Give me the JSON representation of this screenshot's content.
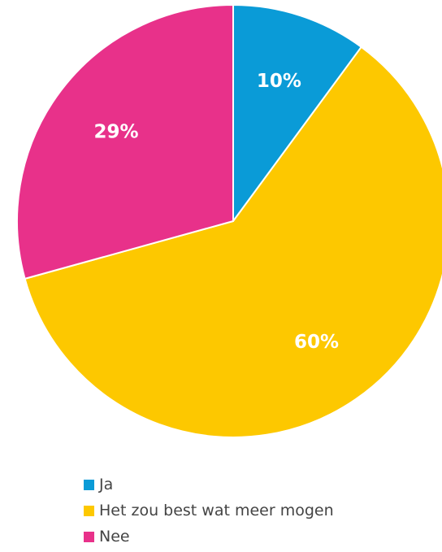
{
  "chart_data": {
    "type": "pie",
    "title": "",
    "slices": [
      {
        "label": "Ja",
        "value": 10,
        "display": "10%",
        "color": "#0a9bd7"
      },
      {
        "label": "Het zou best wat meer mogen",
        "value": 60,
        "display": "60%",
        "color": "#fdc800"
      },
      {
        "label": "Nee",
        "value": 29,
        "display": "29%",
        "color": "#e8318a"
      }
    ],
    "start_angle": "12 o'clock",
    "direction": "clockwise",
    "legend_position": "bottom"
  }
}
